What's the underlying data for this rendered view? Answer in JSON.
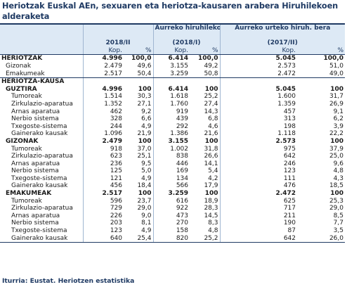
{
  "title": "Heriotzak Euskal AEn, sexuaren eta heriotza-kausaren arabera Hiruhilekoen alderaketa",
  "header": {
    "col_group_1": "",
    "col_group_2": "Aurreko hiruhilekoa",
    "col_group_3": "Aurreko urteko hiruh. bera",
    "period_1": "2018/II",
    "period_2": "(2018/I)",
    "period_3": "(2017/II)",
    "kop": "Kop.",
    "pct": "%"
  },
  "rows": [
    {
      "label": "HERIOTZAK",
      "a": "4.996",
      "ap": "100,0",
      "b": "6.414",
      "bp": "100,0",
      "c": "5.045",
      "cp": "100,0",
      "style": "bold"
    },
    {
      "label": "Gizonak",
      "a": "2.479",
      "ap": "49,6",
      "b": "3.155",
      "bp": "49,2",
      "c": "2.573",
      "cp": "51,0",
      "style": "ind1"
    },
    {
      "label": "Emakumeak",
      "a": "2.517",
      "ap": "50,4",
      "b": "3.259",
      "bp": "50,8",
      "c": "2.472",
      "cp": "49,0",
      "style": "ind1"
    },
    {
      "label": "HERIOTZA-KAUSA",
      "a": "",
      "ap": "",
      "b": "",
      "bp": "",
      "c": "",
      "cp": "",
      "style": "bold"
    },
    {
      "label": "GUZTIRA",
      "a": "4.996",
      "ap": "100",
      "b": "6.414",
      "bp": "100",
      "c": "5.045",
      "cp": "100",
      "style": "bold ind1"
    },
    {
      "label": "Tumoreak",
      "a": "1.514",
      "ap": "30,3",
      "b": "1.618",
      "bp": "25,2",
      "c": "1.600",
      "cp": "31,7",
      "style": "ind2"
    },
    {
      "label": "Zirkulazio-aparatua",
      "a": "1.352",
      "ap": "27,1",
      "b": "1.760",
      "bp": "27,4",
      "c": "1.359",
      "cp": "26,9",
      "style": "ind2"
    },
    {
      "label": "Arnas aparatua",
      "a": "462",
      "ap": "9,2",
      "b": "919",
      "bp": "14,3",
      "c": "457",
      "cp": "9,1",
      "style": "ind2"
    },
    {
      "label": "Nerbio sistema",
      "a": "328",
      "ap": "6,6",
      "b": "439",
      "bp": "6,8",
      "c": "313",
      "cp": "6,2",
      "style": "ind2"
    },
    {
      "label": "Txegoste-sistema",
      "a": "244",
      "ap": "4,9",
      "b": "292",
      "bp": "4,6",
      "c": "198",
      "cp": "3,9",
      "style": "ind2"
    },
    {
      "label": "Gainerako kausak",
      "a": "1.096",
      "ap": "21,9",
      "b": "1.386",
      "bp": "21,6",
      "c": "1.118",
      "cp": "22,2",
      "style": "ind2"
    },
    {
      "label": "GIZONAK",
      "a": "2.479",
      "ap": "100",
      "b": "3.155",
      "bp": "100",
      "c": "2.573",
      "cp": "100",
      "style": "bold ind1"
    },
    {
      "label": "Tumoreak",
      "a": "918",
      "ap": "37,0",
      "b": "1.002",
      "bp": "31,8",
      "c": "975",
      "cp": "37,9",
      "style": "ind2"
    },
    {
      "label": "Zirkulazio-aparatua",
      "a": "623",
      "ap": "25,1",
      "b": "838",
      "bp": "26,6",
      "c": "642",
      "cp": "25,0",
      "style": "ind2"
    },
    {
      "label": "Arnas aparatua",
      "a": "236",
      "ap": "9,5",
      "b": "446",
      "bp": "14,1",
      "c": "246",
      "cp": "9,6",
      "style": "ind2"
    },
    {
      "label": "Nerbio sistema",
      "a": "125",
      "ap": "5,0",
      "b": "169",
      "bp": "5,4",
      "c": "123",
      "cp": "4,8",
      "style": "ind2"
    },
    {
      "label": "Txegoste-sistema",
      "a": "121",
      "ap": "4,9",
      "b": "134",
      "bp": "4,2",
      "c": "111",
      "cp": "4,3",
      "style": "ind2"
    },
    {
      "label": "Gainerako kausak",
      "a": "456",
      "ap": "18,4",
      "b": "566",
      "bp": "17,9",
      "c": "476",
      "cp": "18,5",
      "style": "ind2"
    },
    {
      "label": "EMAKUMEAK",
      "a": "2.517",
      "ap": "100",
      "b": "3.259",
      "bp": "100",
      "c": "2.472",
      "cp": "100",
      "style": "bold ind1"
    },
    {
      "label": "Tumoreak",
      "a": "596",
      "ap": "23,7",
      "b": "616",
      "bp": "18,9",
      "c": "625",
      "cp": "25,3",
      "style": "ind2"
    },
    {
      "label": "Zirkulazio-aparatua",
      "a": "729",
      "ap": "29,0",
      "b": "922",
      "bp": "28,3",
      "c": "717",
      "cp": "29,0",
      "style": "ind2"
    },
    {
      "label": "Arnas aparatua",
      "a": "226",
      "ap": "9,0",
      "b": "473",
      "bp": "14,5",
      "c": "211",
      "cp": "8,5",
      "style": "ind2"
    },
    {
      "label": "Nerbio sistema",
      "a": "203",
      "ap": "8,1",
      "b": "270",
      "bp": "8,3",
      "c": "190",
      "cp": "7,7",
      "style": "ind2"
    },
    {
      "label": "Txegoste-sistema",
      "a": "123",
      "ap": "4,9",
      "b": "158",
      "bp": "4,8",
      "c": "87",
      "cp": "3,5",
      "style": "ind2"
    },
    {
      "label": "Gainerako kausak",
      "a": "640",
      "ap": "25,4",
      "b": "820",
      "bp": "25,2",
      "c": "642",
      "cp": "26,0",
      "style": "ind2"
    }
  ],
  "source": "Iturria: Eustat. Heriotzen estatistika"
}
